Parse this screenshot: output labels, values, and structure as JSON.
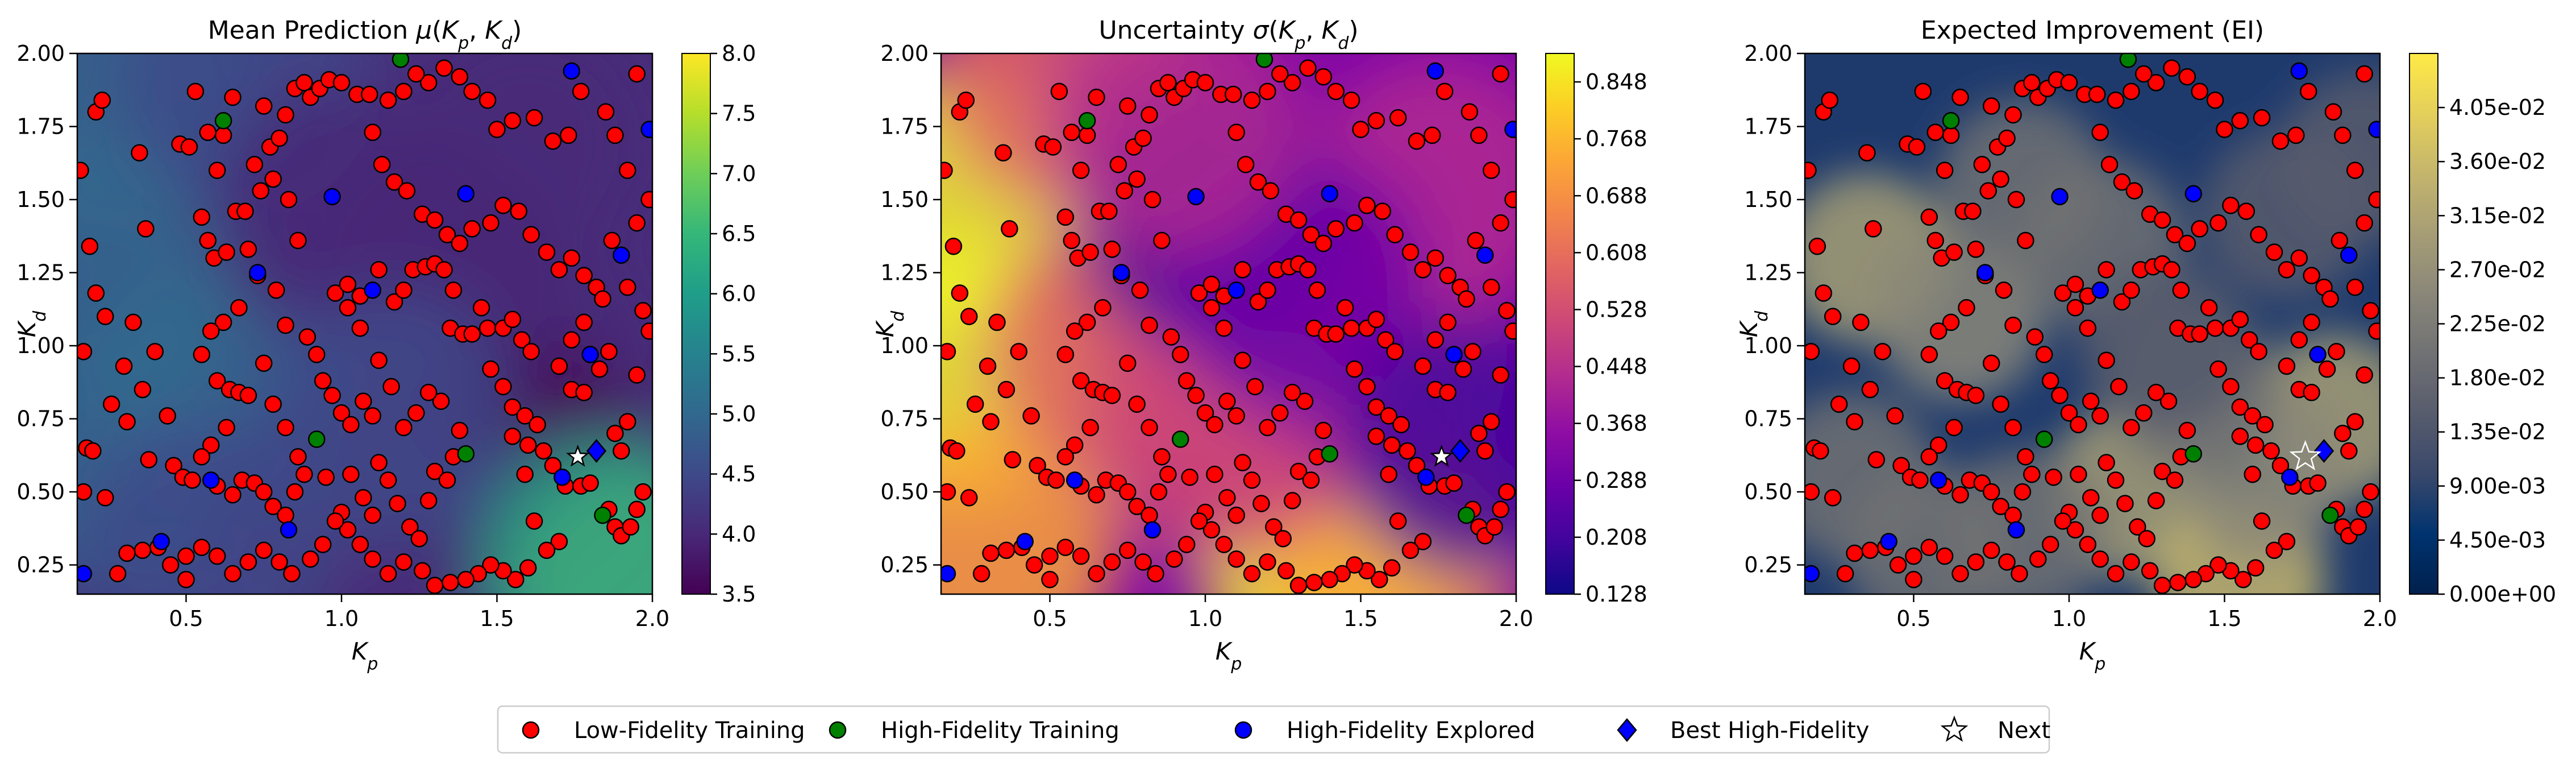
{
  "chart_data": [
    {
      "type": "heatmap",
      "title": "Mean Prediction μ(K_p, K_d)",
      "title_prefix": "Mean Prediction ",
      "title_sym": "μ",
      "xlabel": "K_p",
      "ylabel": "K_d",
      "xlim": [
        0.15,
        2.0
      ],
      "ylim": [
        0.15,
        2.0
      ],
      "x_ticks": [
        "0.5",
        "1.0",
        "1.5",
        "2.0"
      ],
      "y_ticks": [
        "0.25",
        "0.50",
        "0.75",
        "1.00",
        "1.25",
        "1.50",
        "1.75",
        "2.00"
      ],
      "colormap": "viridis",
      "colorbar_range": [
        3.5,
        8.0
      ],
      "colorbar_ticks": [
        "3.5",
        "4.0",
        "4.5",
        "5.0",
        "5.5",
        "6.0",
        "6.5",
        "7.0",
        "7.5",
        "8.0"
      ]
    },
    {
      "type": "heatmap",
      "title": "Uncertainty σ(K_p, K_d)",
      "title_prefix": "Uncertainty ",
      "title_sym": "σ",
      "xlabel": "K_p",
      "ylabel": "K_d",
      "xlim": [
        0.15,
        2.0
      ],
      "ylim": [
        0.15,
        2.0
      ],
      "x_ticks": [
        "0.5",
        "1.0",
        "1.5",
        "2.0"
      ],
      "y_ticks": [
        "0.25",
        "0.50",
        "0.75",
        "1.00",
        "1.25",
        "1.50",
        "1.75",
        "2.00"
      ],
      "colormap": "plasma",
      "colorbar_range": [
        0.128,
        0.888
      ],
      "colorbar_ticks": [
        "0.128",
        "0.208",
        "0.288",
        "0.368",
        "0.448",
        "0.528",
        "0.608",
        "0.688",
        "0.768",
        "0.848"
      ]
    },
    {
      "type": "heatmap",
      "title": "Expected Improvement (EI)",
      "xlabel": "K_p",
      "ylabel": "K_d",
      "xlim": [
        0.15,
        2.0
      ],
      "ylim": [
        0.15,
        2.0
      ],
      "x_ticks": [
        "0.5",
        "1.0",
        "1.5",
        "2.0"
      ],
      "y_ticks": [
        "0.25",
        "0.50",
        "0.75",
        "1.00",
        "1.25",
        "1.50",
        "1.75",
        "2.00"
      ],
      "colormap": "cividis",
      "colorbar_range": [
        0.0,
        0.045
      ],
      "colorbar_ticks": [
        "0.00e+00",
        "4.50e-03",
        "9.00e-03",
        "1.35e-02",
        "1.80e-02",
        "2.25e-02",
        "2.70e-02",
        "3.15e-02",
        "3.60e-02",
        "4.05e-02"
      ]
    }
  ],
  "scatter": {
    "low_fidelity_training": [
      [
        0.16,
        1.6
      ],
      [
        0.19,
        1.34
      ],
      [
        0.21,
        1.18
      ],
      [
        0.21,
        1.8
      ],
      [
        0.23,
        1.84
      ],
      [
        0.24,
        1.1
      ],
      [
        0.17,
        0.98
      ],
      [
        0.18,
        0.65
      ],
      [
        0.2,
        0.64
      ],
      [
        0.17,
        0.5
      ],
      [
        0.24,
        0.48
      ],
      [
        0.26,
        0.8
      ],
      [
        0.3,
        0.93
      ],
      [
        0.33,
        1.08
      ],
      [
        0.35,
        1.66
      ],
      [
        0.37,
        1.4
      ],
      [
        0.31,
        0.74
      ],
      [
        0.36,
        0.85
      ],
      [
        0.38,
        0.61
      ],
      [
        0.4,
        0.98
      ],
      [
        0.44,
        0.76
      ],
      [
        0.46,
        0.59
      ],
      [
        0.49,
        0.55
      ],
      [
        0.52,
        0.54
      ],
      [
        0.48,
        1.69
      ],
      [
        0.51,
        1.68
      ],
      [
        0.55,
        1.44
      ],
      [
        0.57,
        1.36
      ],
      [
        0.6,
        1.6
      ],
      [
        0.62,
        1.72
      ],
      [
        0.65,
        1.85
      ],
      [
        0.53,
        1.87
      ],
      [
        0.57,
        1.73
      ],
      [
        0.59,
        1.3
      ],
      [
        0.63,
        1.32
      ],
      [
        0.66,
        1.46
      ],
      [
        0.69,
        1.46
      ],
      [
        0.72,
        1.62
      ],
      [
        0.74,
        1.53
      ],
      [
        0.77,
        1.68
      ],
      [
        0.8,
        1.71
      ],
      [
        0.82,
        1.79
      ],
      [
        0.85,
        1.88
      ],
      [
        0.88,
        1.9
      ],
      [
        0.9,
        1.85
      ],
      [
        0.93,
        1.88
      ],
      [
        0.96,
        1.91
      ],
      [
        1.0,
        1.9
      ],
      [
        0.75,
        1.82
      ],
      [
        0.78,
        1.57
      ],
      [
        0.83,
        1.5
      ],
      [
        0.86,
        1.36
      ],
      [
        0.7,
        1.33
      ],
      [
        0.73,
        1.24
      ],
      [
        0.79,
        1.19
      ],
      [
        0.67,
        1.13
      ],
      [
        0.62,
        1.08
      ],
      [
        0.58,
        1.05
      ],
      [
        0.55,
        0.97
      ],
      [
        0.6,
        0.88
      ],
      [
        0.64,
        0.85
      ],
      [
        0.67,
        0.84
      ],
      [
        0.7,
        0.83
      ],
      [
        0.63,
        0.72
      ],
      [
        0.58,
        0.66
      ],
      [
        0.55,
        0.62
      ],
      [
        0.6,
        0.52
      ],
      [
        0.65,
        0.49
      ],
      [
        0.68,
        0.54
      ],
      [
        0.72,
        0.53
      ],
      [
        0.75,
        0.5
      ],
      [
        0.78,
        0.45
      ],
      [
        0.82,
        0.42
      ],
      [
        0.85,
        0.5
      ],
      [
        0.88,
        0.56
      ],
      [
        0.86,
        0.62
      ],
      [
        0.82,
        0.72
      ],
      [
        0.78,
        0.8
      ],
      [
        0.75,
        0.94
      ],
      [
        0.82,
        1.07
      ],
      [
        0.89,
        1.03
      ],
      [
        0.92,
        0.97
      ],
      [
        0.94,
        0.88
      ],
      [
        0.97,
        0.83
      ],
      [
        1.0,
        0.77
      ],
      [
        1.03,
        0.73
      ],
      [
        1.07,
        0.81
      ],
      [
        1.1,
        0.76
      ],
      [
        1.03,
        0.56
      ],
      [
        1.07,
        0.48
      ],
      [
        1.1,
        0.42
      ],
      [
        1.0,
        0.43
      ],
      [
        0.95,
        0.55
      ],
      [
        1.12,
        0.6
      ],
      [
        1.15,
        0.54
      ],
      [
        1.18,
        0.46
      ],
      [
        1.22,
        0.38
      ],
      [
        1.25,
        0.34
      ],
      [
        1.28,
        0.47
      ],
      [
        1.3,
        0.57
      ],
      [
        1.34,
        0.54
      ],
      [
        1.36,
        0.62
      ],
      [
        1.38,
        0.71
      ],
      [
        1.32,
        0.81
      ],
      [
        1.28,
        0.84
      ],
      [
        1.24,
        0.77
      ],
      [
        1.2,
        0.72
      ],
      [
        1.16,
        0.86
      ],
      [
        1.12,
        0.95
      ],
      [
        1.06,
        1.06
      ],
      [
        1.02,
        1.13
      ],
      [
        0.98,
        1.18
      ],
      [
        1.02,
        1.21
      ],
      [
        1.06,
        1.17
      ],
      [
        1.12,
        1.26
      ],
      [
        1.17,
        1.15
      ],
      [
        1.2,
        1.19
      ],
      [
        1.23,
        1.26
      ],
      [
        1.27,
        1.27
      ],
      [
        1.3,
        1.28
      ],
      [
        1.33,
        1.26
      ],
      [
        1.36,
        1.19
      ],
      [
        1.35,
        1.06
      ],
      [
        1.39,
        1.04
      ],
      [
        1.42,
        1.04
      ],
      [
        1.45,
        1.13
      ],
      [
        1.47,
        1.06
      ],
      [
        1.52,
        1.06
      ],
      [
        1.55,
        1.09
      ],
      [
        1.58,
        1.02
      ],
      [
        1.61,
        0.98
      ],
      [
        1.48,
        0.92
      ],
      [
        1.52,
        0.86
      ],
      [
        1.55,
        0.79
      ],
      [
        1.59,
        0.76
      ],
      [
        1.63,
        0.73
      ],
      [
        1.55,
        0.69
      ],
      [
        1.6,
        0.66
      ],
      [
        1.65,
        0.64
      ],
      [
        1.68,
        0.59
      ],
      [
        1.72,
        0.52
      ],
      [
        1.77,
        0.52
      ],
      [
        1.8,
        0.53
      ],
      [
        1.86,
        0.44
      ],
      [
        1.88,
        0.38
      ],
      [
        1.9,
        0.35
      ],
      [
        1.93,
        0.38
      ],
      [
        1.95,
        0.44
      ],
      [
        1.97,
        0.5
      ],
      [
        1.9,
        0.64
      ],
      [
        1.88,
        0.7
      ],
      [
        1.92,
        0.74
      ],
      [
        1.95,
        0.9
      ],
      [
        1.99,
        1.05
      ],
      [
        1.97,
        1.12
      ],
      [
        1.92,
        1.2
      ],
      [
        1.87,
        1.36
      ],
      [
        1.95,
        1.42
      ],
      [
        1.99,
        1.5
      ],
      [
        1.92,
        1.6
      ],
      [
        1.88,
        1.72
      ],
      [
        1.85,
        1.8
      ],
      [
        1.95,
        1.93
      ],
      [
        1.77,
        1.87
      ],
      [
        1.73,
        1.72
      ],
      [
        1.68,
        1.7
      ],
      [
        1.62,
        1.78
      ],
      [
        1.55,
        1.77
      ],
      [
        1.5,
        1.74
      ],
      [
        1.47,
        1.84
      ],
      [
        1.42,
        1.87
      ],
      [
        1.38,
        1.92
      ],
      [
        1.33,
        1.95
      ],
      [
        1.28,
        1.9
      ],
      [
        1.24,
        1.93
      ],
      [
        1.2,
        1.87
      ],
      [
        1.15,
        1.84
      ],
      [
        1.1,
        1.73
      ],
      [
        1.05,
        1.86
      ],
      [
        1.09,
        1.86
      ],
      [
        1.13,
        1.62
      ],
      [
        1.17,
        1.56
      ],
      [
        1.21,
        1.53
      ],
      [
        1.26,
        1.45
      ],
      [
        1.3,
        1.43
      ],
      [
        1.34,
        1.38
      ],
      [
        1.38,
        1.35
      ],
      [
        1.42,
        1.4
      ],
      [
        1.48,
        1.42
      ],
      [
        1.52,
        1.48
      ],
      [
        1.57,
        1.46
      ],
      [
        1.61,
        1.38
      ],
      [
        1.66,
        1.32
      ],
      [
        1.7,
        1.26
      ],
      [
        1.74,
        1.3
      ],
      [
        1.78,
        1.24
      ],
      [
        1.82,
        1.2
      ],
      [
        1.84,
        1.16
      ],
      [
        1.78,
        1.08
      ],
      [
        1.74,
        1.02
      ],
      [
        1.7,
        0.93
      ],
      [
        1.74,
        0.85
      ],
      [
        1.78,
        0.84
      ],
      [
        1.83,
        0.92
      ],
      [
        1.86,
        0.98
      ],
      [
        1.7,
        0.33
      ],
      [
        1.66,
        0.3
      ],
      [
        1.6,
        0.24
      ],
      [
        1.56,
        0.2
      ],
      [
        1.52,
        0.23
      ],
      [
        1.48,
        0.25
      ],
      [
        1.44,
        0.22
      ],
      [
        1.4,
        0.2
      ],
      [
        1.35,
        0.19
      ],
      [
        1.3,
        0.18
      ],
      [
        1.26,
        0.23
      ],
      [
        1.2,
        0.26
      ],
      [
        1.15,
        0.22
      ],
      [
        1.1,
        0.27
      ],
      [
        1.06,
        0.32
      ],
      [
        1.02,
        0.37
      ],
      [
        0.98,
        0.4
      ],
      [
        0.94,
        0.32
      ],
      [
        0.9,
        0.27
      ],
      [
        0.84,
        0.22
      ],
      [
        0.8,
        0.26
      ],
      [
        0.75,
        0.3
      ],
      [
        0.7,
        0.26
      ],
      [
        0.65,
        0.22
      ],
      [
        0.6,
        0.28
      ],
      [
        0.55,
        0.31
      ],
      [
        0.5,
        0.28
      ],
      [
        0.45,
        0.25
      ],
      [
        0.41,
        0.31
      ],
      [
        0.36,
        0.3
      ],
      [
        0.31,
        0.29
      ],
      [
        0.28,
        0.22
      ],
      [
        0.5,
        0.2
      ],
      [
        1.62,
        0.4
      ],
      [
        1.59,
        0.56
      ]
    ],
    "high_fidelity_training": [
      [
        0.62,
        1.77
      ],
      [
        1.19,
        1.98
      ],
      [
        0.92,
        0.68
      ],
      [
        1.4,
        0.63
      ],
      [
        1.84,
        0.42
      ]
    ],
    "high_fidelity_explored": [
      [
        0.58,
        0.54
      ],
      [
        0.73,
        1.25
      ],
      [
        0.97,
        1.51
      ],
      [
        1.1,
        1.19
      ],
      [
        1.4,
        1.52
      ],
      [
        1.8,
        0.97
      ],
      [
        1.9,
        1.31
      ],
      [
        0.42,
        0.33
      ],
      [
        0.83,
        0.37
      ],
      [
        0.17,
        0.22
      ],
      [
        1.71,
        0.55
      ],
      [
        1.74,
        1.94
      ],
      [
        1.99,
        1.74
      ]
    ],
    "best_high_fidelity": [
      1.82,
      0.64
    ],
    "next": [
      1.76,
      0.62
    ]
  },
  "legend": {
    "items": [
      {
        "label": "Low-Fidelity Training",
        "marker": "circle",
        "color": "#ff0000"
      },
      {
        "label": "High-Fidelity Training",
        "marker": "circle",
        "color": "#008000"
      },
      {
        "label": "High-Fidelity Explored",
        "marker": "circle",
        "color": "#0000ff"
      },
      {
        "label": "Best High-Fidelity",
        "marker": "diamond",
        "color": "#0000ff"
      },
      {
        "label": "Next",
        "marker": "star",
        "color": "#ffffff"
      }
    ],
    "placement": "bottom-center"
  }
}
